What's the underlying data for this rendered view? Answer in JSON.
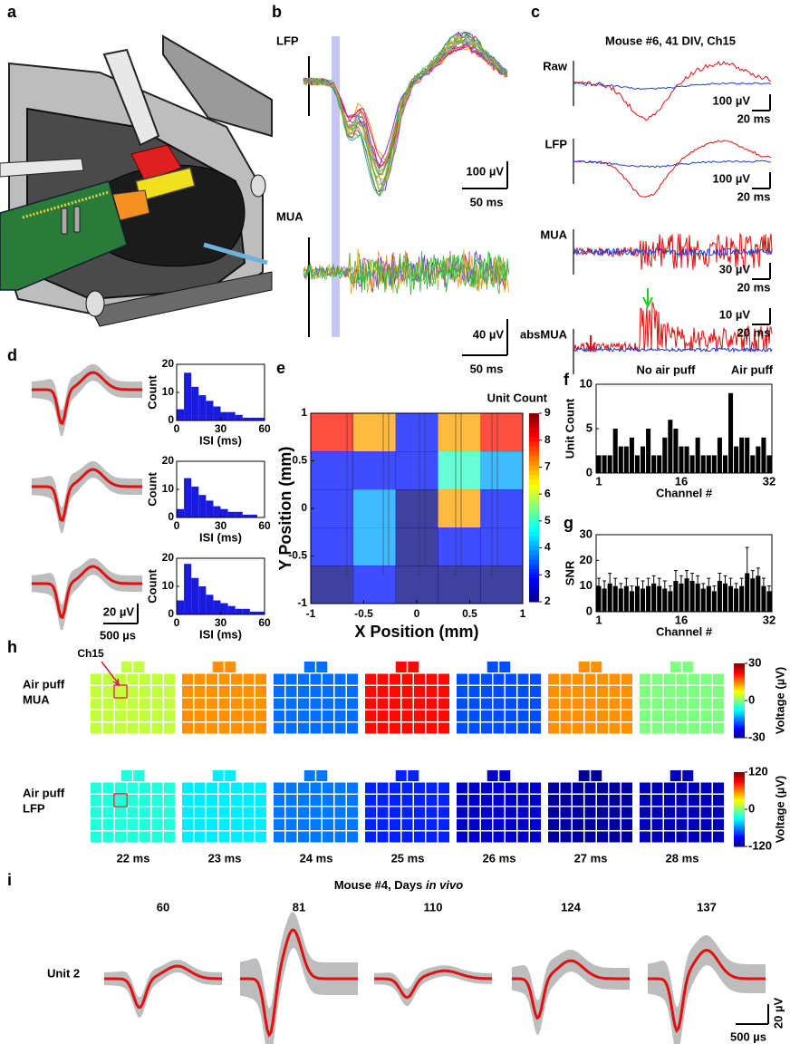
{
  "panel_labels": [
    "a",
    "b",
    "c",
    "d",
    "e",
    "f",
    "g",
    "h",
    "i"
  ],
  "b": {
    "trace_labels": [
      "LFP",
      "MUA"
    ],
    "scale_bars": [
      {
        "amplitude": "100 µV",
        "time": "50 ms"
      },
      {
        "amplitude": "40 µV",
        "time": "50 ms"
      }
    ]
  },
  "c": {
    "title": "Mouse #6, 41 DIV, Ch15",
    "rows": [
      {
        "label": "Raw",
        "amplitude": "100 µV",
        "time": "20 ms"
      },
      {
        "label": "LFP",
        "amplitude": "100 µV",
        "time": "20 ms"
      },
      {
        "label": "MUA",
        "amplitude": "30 µV",
        "time": "20 ms"
      },
      {
        "label": "absMUA",
        "amplitude": "10 µV",
        "time": "20 ms"
      }
    ],
    "legend": [
      {
        "name": "No air puff",
        "color": "#1f3fd0"
      },
      {
        "name": "Air puff",
        "color": "#e01010"
      }
    ]
  },
  "d": {
    "scale": {
      "amplitude": "20 µV",
      "time": "500 µs"
    },
    "waveform_color": "#e01010",
    "histograms": [
      {
        "type": "histogram",
        "ylabel": "Count",
        "xlabel": "ISI (ms)",
        "color": "#1a1ae0",
        "bins": [
          0,
          5,
          10,
          15,
          20,
          25,
          30,
          35,
          40,
          45,
          50,
          55,
          60
        ],
        "values": [
          4,
          17,
          12,
          9,
          7,
          5,
          3,
          3,
          2,
          1,
          1,
          1
        ],
        "xlim": [
          0,
          60
        ],
        "ylim": [
          0,
          20
        ],
        "xticks": [
          0,
          30,
          60
        ],
        "yticks": [
          0,
          10,
          20
        ]
      },
      {
        "type": "histogram",
        "ylabel": "Count",
        "xlabel": "ISI (ms)",
        "color": "#1a1ae0",
        "bins": [
          0,
          5,
          10,
          15,
          20,
          25,
          30,
          35,
          40,
          45,
          50,
          55,
          60
        ],
        "values": [
          3,
          14,
          11,
          8,
          6,
          4,
          3,
          2,
          2,
          1,
          1,
          0
        ],
        "xlim": [
          0,
          60
        ],
        "ylim": [
          0,
          20
        ],
        "xticks": [
          0,
          30,
          60
        ],
        "yticks": [
          0,
          10,
          20
        ]
      },
      {
        "type": "histogram",
        "ylabel": "Count",
        "xlabel": "ISI (ms)",
        "color": "#1a1ae0",
        "bins": [
          0,
          5,
          10,
          15,
          20,
          25,
          30,
          35,
          40,
          45,
          50,
          55,
          60
        ],
        "values": [
          5,
          18,
          13,
          10,
          7,
          5,
          4,
          3,
          2,
          2,
          1,
          1
        ],
        "xlim": [
          0,
          60
        ],
        "ylim": [
          0,
          20
        ],
        "xticks": [
          0,
          30,
          60
        ],
        "yticks": [
          0,
          10,
          20
        ]
      }
    ]
  },
  "e": {
    "type": "heatmap",
    "title": "Unit Count",
    "xlabel": "X Position (mm)",
    "ylabel": "Y Position (mm)",
    "xlim": [
      -1,
      1
    ],
    "ylim": [
      -1,
      1
    ],
    "xticks": [
      -1,
      -0.5,
      0,
      0.5,
      1
    ],
    "yticks": [
      -1,
      -0.5,
      0,
      0.5,
      1
    ],
    "values": [
      [
        8,
        7,
        3,
        7,
        8
      ],
      [
        3,
        3,
        3,
        5,
        4
      ],
      [
        3,
        4,
        2,
        7,
        3
      ],
      [
        3,
        4,
        2,
        3,
        3
      ],
      [
        2,
        3,
        2,
        2,
        2
      ]
    ],
    "clim": [
      2,
      9
    ],
    "cticks": [
      2,
      3,
      4,
      5,
      6,
      7,
      8,
      9
    ]
  },
  "f": {
    "type": "bar",
    "ylabel": "Unit Count",
    "xlabel": "Channel #",
    "color": "#000000",
    "categories": [
      "1",
      null,
      null,
      null,
      null,
      null,
      null,
      null,
      null,
      null,
      null,
      null,
      null,
      null,
      null,
      "16",
      null,
      null,
      null,
      null,
      null,
      null,
      null,
      null,
      null,
      null,
      null,
      null,
      null,
      null,
      null,
      "32"
    ],
    "values": [
      2,
      2,
      2,
      5,
      3,
      3,
      4,
      2,
      3,
      5,
      2,
      2,
      4,
      6,
      5,
      3,
      3,
      2,
      4,
      2,
      2,
      2,
      4,
      2,
      9,
      3,
      4,
      4,
      2,
      3,
      4,
      2
    ],
    "ylim": [
      0,
      10
    ],
    "yticks": [
      0,
      5,
      10
    ]
  },
  "g": {
    "type": "bar",
    "ylabel": "SNR",
    "xlabel": "Channel #",
    "color": "#000000",
    "categories": [
      "1",
      null,
      null,
      null,
      null,
      null,
      null,
      null,
      null,
      null,
      null,
      null,
      null,
      null,
      null,
      "16",
      null,
      null,
      null,
      null,
      null,
      null,
      null,
      null,
      null,
      null,
      null,
      null,
      null,
      null,
      null,
      "32"
    ],
    "values": [
      10,
      9,
      11,
      10,
      9,
      10,
      8,
      10,
      9,
      10,
      11,
      10,
      9,
      8,
      12,
      11,
      13,
      12,
      11,
      9,
      10,
      8,
      12,
      11,
      10,
      9,
      10,
      15,
      13,
      14,
      10,
      8
    ],
    "errors": [
      3,
      3,
      4,
      3,
      2,
      3,
      2,
      3,
      3,
      3,
      3,
      3,
      3,
      2,
      4,
      3,
      3,
      3,
      3,
      2,
      3,
      2,
      3,
      3,
      3,
      2,
      3,
      10,
      3,
      3,
      3,
      2
    ],
    "ylim": [
      0,
      30
    ],
    "yticks": [
      0,
      10,
      20,
      30
    ]
  },
  "h": {
    "callout": "Ch15",
    "times": [
      "22 ms",
      "23 ms",
      "24 ms",
      "25 ms",
      "26 ms",
      "27 ms",
      "28 ms"
    ],
    "rows": [
      {
        "label": [
          "Air puff",
          "MUA"
        ],
        "values": [
          4,
          14,
          -16,
          22,
          -18,
          14,
          0
        ],
        "clim": [
          -30,
          30
        ],
        "cticks": [
          30,
          0,
          -30
        ],
        "colorbar_label": "Voltage (µV)"
      },
      {
        "label": [
          "Air puff",
          "LFP"
        ],
        "values": [
          -22,
          -34,
          -62,
          -82,
          -102,
          -112,
          -106
        ],
        "clim": [
          -120,
          120
        ],
        "cticks": [
          120,
          0,
          -120
        ],
        "colorbar_label": "Voltage (µV)"
      }
    ]
  },
  "i": {
    "title": [
      "Mouse #4, Days ",
      "in vivo"
    ],
    "days": [
      60,
      81,
      110,
      124,
      137
    ],
    "unit_label": "Unit 2",
    "scale": {
      "amplitude": "20 µV",
      "time": "500 µs"
    }
  }
}
